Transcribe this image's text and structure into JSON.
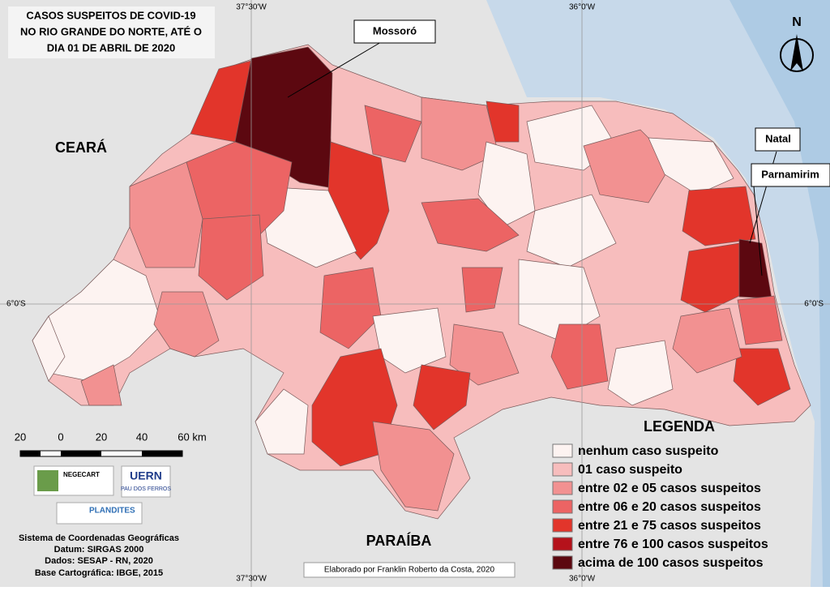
{
  "title": [
    "CASOS SUSPEITOS DE COVID-19",
    "NO RIO GRANDE DO NORTE, ATÉ O",
    "DIA 01 DE ABRIL DE 2020"
  ],
  "graticule": {
    "top": [
      "37°30'W",
      "36°0'W"
    ],
    "bottom": [
      "37°30'W",
      "36°0'W"
    ],
    "left": "6°0'S",
    "right": "6°0'S"
  },
  "north": "N",
  "callouts": [
    "Mossoró",
    "Natal",
    "Parnamirim"
  ],
  "regions": [
    "CEARÁ",
    "PARAÍBA"
  ],
  "legend": {
    "title": "LEGENDA",
    "items": [
      {
        "label": "nenhum caso suspeito",
        "color": "#fdf3f1"
      },
      {
        "label": "01 caso suspeito",
        "color": "#f7bdbd"
      },
      {
        "label": "entre 02 e 05 casos suspeitos",
        "color": "#f29191"
      },
      {
        "label": "entre 06 e 20 casos suspeitos",
        "color": "#ec6464"
      },
      {
        "label": "entre 21 e 75 casos suspeitos",
        "color": "#e2352b"
      },
      {
        "label": "entre 76 e 100 casos suspeitos",
        "color": "#b5121b"
      },
      {
        "label": "acima de 100 casos suspeitos",
        "color": "#5c0810"
      }
    ]
  },
  "scale": [
    "20",
    "0",
    "20",
    "40",
    "60 km"
  ],
  "logos": {
    "negecart": "NEGECART",
    "uern": "UERN",
    "uern_sub": "PAU DOS FERROS",
    "plandites": "PLANDITES"
  },
  "metadata": [
    "Sistema de Coordenadas Geográficas",
    "Datum: SIRGAS 2000",
    "Dados: SESAP - RN, 2020",
    "Base Cartográfica: IBGE, 2015"
  ],
  "credit": "Elaborado por Franklin Roberto da Costa, 2020"
}
